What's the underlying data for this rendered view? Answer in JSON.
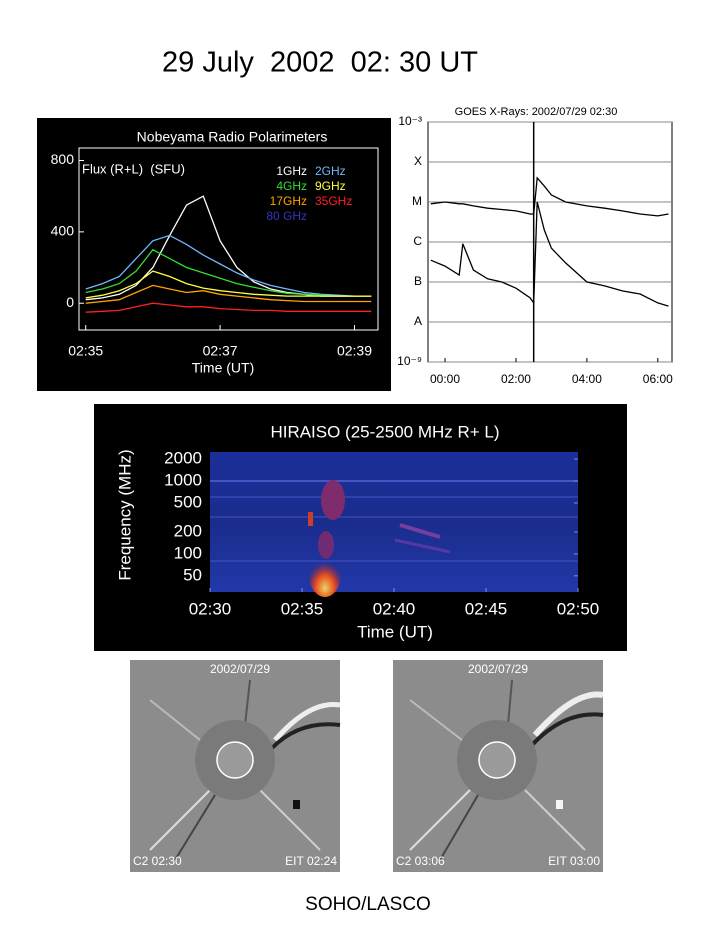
{
  "title": "29 July  2002  02: 30 UT",
  "chart_data": [
    {
      "type": "line",
      "title": "Nobeyama Radio Polarimeters",
      "y_label": "Flux (R+L)  (SFU)",
      "x_label": "Time (UT)",
      "x": [
        155,
        155.25,
        155.5,
        155.75,
        156,
        156.25,
        156.5,
        156.75,
        157,
        157.25,
        157.5,
        157.75,
        158,
        158.25,
        158.5,
        158.75,
        159,
        159.25
      ],
      "xlim": [
        154.9,
        159.35
      ],
      "xticks": [
        {
          "value": 155,
          "label": "02:35"
        },
        {
          "value": 157,
          "label": "02:37"
        },
        {
          "value": 159,
          "label": "02:39"
        }
      ],
      "ylim": [
        -150,
        870
      ],
      "yticks": [
        0,
        400,
        800
      ],
      "legend": "top-right",
      "series": [
        {
          "name": "1GHz",
          "color": "#ffffff",
          "values": [
            20,
            30,
            50,
            100,
            200,
            380,
            550,
            600,
            350,
            200,
            120,
            80,
            60,
            50,
            40,
            40,
            40,
            40
          ]
        },
        {
          "name": "2GHz",
          "color": "#6fb8ff",
          "values": [
            80,
            110,
            150,
            250,
            350,
            380,
            330,
            270,
            220,
            170,
            130,
            100,
            80,
            60,
            50,
            45,
            40,
            40
          ]
        },
        {
          "name": "4GHz",
          "color": "#33dd33",
          "values": [
            60,
            80,
            110,
            180,
            300,
            250,
            200,
            170,
            140,
            110,
            90,
            70,
            55,
            50,
            45,
            40,
            40,
            40
          ]
        },
        {
          "name": "9GHz",
          "color": "#ffff40",
          "values": [
            30,
            45,
            70,
            110,
            180,
            150,
            110,
            85,
            70,
            60,
            50,
            45,
            40,
            40,
            40,
            40,
            40,
            40
          ]
        },
        {
          "name": "17GHz",
          "color": "#ffa500",
          "values": [
            0,
            10,
            20,
            60,
            100,
            80,
            60,
            70,
            50,
            40,
            30,
            20,
            15,
            10,
            10,
            10,
            10,
            10
          ]
        },
        {
          "name": "35GHz",
          "color": "#ff2020",
          "values": [
            -50,
            -45,
            -40,
            -20,
            0,
            -10,
            -20,
            -20,
            -30,
            -35,
            -40,
            -40,
            -45,
            -45,
            -45,
            -45,
            -45,
            -45
          ]
        },
        {
          "name": "80 GHz",
          "color": "#3434c4",
          "values": [
            null,
            null,
            null,
            null,
            null,
            null,
            null,
            null,
            null,
            null,
            null,
            null,
            null,
            null,
            null,
            null,
            null,
            null
          ]
        }
      ]
    },
    {
      "type": "line",
      "title": "GOES X-Rays: 2002/07/29 02:30",
      "log_y": true,
      "grid": true,
      "x": [
        -0.4,
        0,
        0.4,
        0.5,
        0.8,
        1.2,
        1.6,
        2.0,
        2.4,
        2.5,
        2.6,
        2.8,
        3.0,
        3.4,
        4.0,
        4.5,
        5.0,
        5.5,
        6.0,
        6.3
      ],
      "xlim": [
        -0.48,
        6.4
      ],
      "xticks": [
        {
          "value": 0,
          "label": "00:00"
        },
        {
          "value": 2,
          "label": "02:00"
        },
        {
          "value": 4,
          "label": "04:00"
        },
        {
          "value": 6,
          "label": "06:00"
        }
      ],
      "ylim": [
        1e-09,
        0.001
      ],
      "yticks": [
        {
          "value": 1e-09,
          "label": "10⁻⁹"
        },
        {
          "value": 1e-08,
          "label": "A"
        },
        {
          "value": 1e-07,
          "label": "B"
        },
        {
          "value": 1e-06,
          "label": "C"
        },
        {
          "value": 1e-05,
          "label": "M"
        },
        {
          "value": 0.0001,
          "label": "X"
        },
        {
          "value": 0.001,
          "label": "10⁻³"
        }
      ],
      "marker_x": 2.5,
      "series": [
        {
          "color": "#000000",
          "values": [
            9e-06,
            1e-05,
            9e-06,
            9e-06,
            8e-06,
            7e-06,
            6.5e-06,
            6e-06,
            5e-06,
            5e-06,
            4e-05,
            2.5e-05,
            1.5e-05,
            1e-05,
            8e-06,
            7e-06,
            6e-06,
            5e-06,
            4.5e-06,
            5e-06
          ]
        },
        {
          "color": "#000000",
          "values": [
            3.5e-07,
            2.5e-07,
            1.5e-07,
            9e-07,
            2e-07,
            1.2e-07,
            1e-07,
            7e-08,
            4e-08,
            3e-08,
            1e-05,
            2e-06,
            7e-07,
            3e-07,
            1e-07,
            8e-08,
            6e-08,
            5e-08,
            3e-08,
            2.5e-08
          ]
        }
      ]
    },
    {
      "type": "spectrogram",
      "title": "HIRAISO (25-2500 MHz R+ L)",
      "x_label": "Time (UT)",
      "y_label": "Frequency (MHz)",
      "log_y": true,
      "xlim": [
        150,
        170
      ],
      "xticks": [
        {
          "value": 150,
          "label": "02:30"
        },
        {
          "value": 155,
          "label": "02:35"
        },
        {
          "value": 160,
          "label": "02:40"
        },
        {
          "value": 165,
          "label": "02:45"
        },
        {
          "value": 170,
          "label": "02:50"
        }
      ],
      "ylim": [
        30,
        2500
      ],
      "yticks": [
        50,
        100,
        200,
        500,
        1000,
        2000
      ]
    }
  ],
  "images": [
    {
      "date": "2002/07/29",
      "c2": "C2 02:30",
      "eit": "EIT 02:24"
    },
    {
      "date": "2002/07/29",
      "c2": "C2 03:06",
      "eit": "EIT 03:00"
    }
  ],
  "caption": "SOHO/LASCO"
}
